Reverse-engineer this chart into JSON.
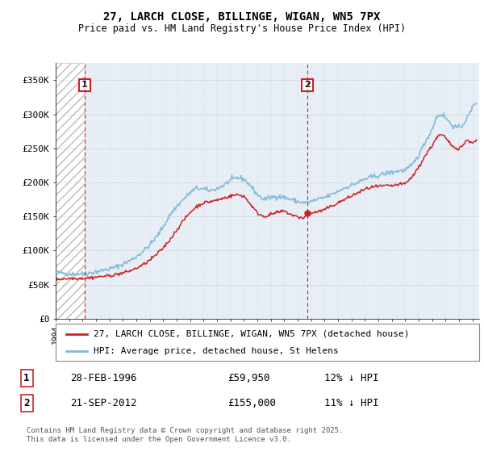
{
  "title1": "27, LARCH CLOSE, BILLINGE, WIGAN, WN5 7PX",
  "title2": "Price paid vs. HM Land Registry's House Price Index (HPI)",
  "ylim": [
    0,
    375000
  ],
  "xlim_start": 1994.0,
  "xlim_end": 2025.5,
  "sale1_date": 1996.16,
  "sale1_price": 59950,
  "sale1_label": "1",
  "sale2_date": 2012.72,
  "sale2_price": 155000,
  "sale2_label": "2",
  "hpi_color": "#7ab8d9",
  "price_color": "#cc2222",
  "bg_color": "#e8eef5",
  "legend_line1": "27, LARCH CLOSE, BILLINGE, WIGAN, WN5 7PX (detached house)",
  "legend_line2": "HPI: Average price, detached house, St Helens",
  "info1_num": "1",
  "info1_date": "28-FEB-1996",
  "info1_price": "£59,950",
  "info1_hpi": "12% ↓ HPI",
  "info2_num": "2",
  "info2_date": "21-SEP-2012",
  "info2_price": "£155,000",
  "info2_hpi": "11% ↓ HPI",
  "footnote": "Contains HM Land Registry data © Crown copyright and database right 2025.\nThis data is licensed under the Open Government Licence v3.0.",
  "hpi_anchors": [
    [
      1994.0,
      68000
    ],
    [
      1994.5,
      67000
    ],
    [
      1995.0,
      66000
    ],
    [
      1995.5,
      65500
    ],
    [
      1996.0,
      66000
    ],
    [
      1996.5,
      67000
    ],
    [
      1997.0,
      69000
    ],
    [
      1997.5,
      71000
    ],
    [
      1998.0,
      73000
    ],
    [
      1998.5,
      76000
    ],
    [
      1999.0,
      80000
    ],
    [
      1999.5,
      85000
    ],
    [
      2000.0,
      91000
    ],
    [
      2000.5,
      99000
    ],
    [
      2001.0,
      108000
    ],
    [
      2001.5,
      120000
    ],
    [
      2002.0,
      135000
    ],
    [
      2002.5,
      152000
    ],
    [
      2003.0,
      165000
    ],
    [
      2003.5,
      175000
    ],
    [
      2004.0,
      185000
    ],
    [
      2004.5,
      192000
    ],
    [
      2005.0,
      190000
    ],
    [
      2005.5,
      188000
    ],
    [
      2006.0,
      191000
    ],
    [
      2006.5,
      196000
    ],
    [
      2007.0,
      203000
    ],
    [
      2007.5,
      207000
    ],
    [
      2008.0,
      205000
    ],
    [
      2008.5,
      195000
    ],
    [
      2009.0,
      182000
    ],
    [
      2009.5,
      175000
    ],
    [
      2010.0,
      178000
    ],
    [
      2010.5,
      180000
    ],
    [
      2011.0,
      178000
    ],
    [
      2011.5,
      175000
    ],
    [
      2012.0,
      172000
    ],
    [
      2012.5,
      170000
    ],
    [
      2013.0,
      172000
    ],
    [
      2013.5,
      175000
    ],
    [
      2014.0,
      178000
    ],
    [
      2014.5,
      182000
    ],
    [
      2015.0,
      187000
    ],
    [
      2015.5,
      192000
    ],
    [
      2016.0,
      196000
    ],
    [
      2016.5,
      200000
    ],
    [
      2017.0,
      205000
    ],
    [
      2017.5,
      208000
    ],
    [
      2018.0,
      210000
    ],
    [
      2018.5,
      213000
    ],
    [
      2019.0,
      215000
    ],
    [
      2019.5,
      217000
    ],
    [
      2020.0,
      218000
    ],
    [
      2020.5,
      225000
    ],
    [
      2021.0,
      240000
    ],
    [
      2021.5,
      260000
    ],
    [
      2022.0,
      278000
    ],
    [
      2022.3,
      295000
    ],
    [
      2022.6,
      300000
    ],
    [
      2022.9,
      298000
    ],
    [
      2023.0,
      295000
    ],
    [
      2023.3,
      288000
    ],
    [
      2023.6,
      282000
    ],
    [
      2024.0,
      280000
    ],
    [
      2024.3,
      285000
    ],
    [
      2024.6,
      295000
    ],
    [
      2024.9,
      305000
    ],
    [
      2025.1,
      315000
    ],
    [
      2025.3,
      318000
    ]
  ],
  "price_anchors": [
    [
      1994.0,
      58000
    ],
    [
      1994.5,
      58500
    ],
    [
      1995.0,
      59000
    ],
    [
      1995.5,
      59200
    ],
    [
      1996.0,
      59500
    ],
    [
      1996.5,
      60000
    ],
    [
      1997.0,
      61000
    ],
    [
      1997.5,
      62000
    ],
    [
      1998.0,
      63000
    ],
    [
      1998.5,
      65000
    ],
    [
      1999.0,
      67000
    ],
    [
      1999.5,
      70000
    ],
    [
      2000.0,
      74000
    ],
    [
      2000.5,
      79000
    ],
    [
      2001.0,
      86000
    ],
    [
      2001.5,
      94000
    ],
    [
      2002.0,
      104000
    ],
    [
      2002.5,
      116000
    ],
    [
      2003.0,
      130000
    ],
    [
      2003.5,
      144000
    ],
    [
      2004.0,
      156000
    ],
    [
      2004.5,
      165000
    ],
    [
      2005.0,
      170000
    ],
    [
      2005.5,
      172000
    ],
    [
      2006.0,
      174000
    ],
    [
      2006.5,
      177000
    ],
    [
      2007.0,
      180000
    ],
    [
      2007.5,
      182000
    ],
    [
      2008.0,
      180000
    ],
    [
      2008.5,
      168000
    ],
    [
      2009.0,
      155000
    ],
    [
      2009.5,
      150000
    ],
    [
      2010.0,
      153000
    ],
    [
      2010.5,
      156000
    ],
    [
      2011.0,
      158000
    ],
    [
      2011.5,
      153000
    ],
    [
      2012.0,
      149000
    ],
    [
      2012.5,
      148000
    ],
    [
      2012.72,
      155000
    ],
    [
      2013.0,
      155000
    ],
    [
      2013.5,
      157000
    ],
    [
      2014.0,
      160000
    ],
    [
      2014.5,
      165000
    ],
    [
      2015.0,
      170000
    ],
    [
      2015.5,
      175000
    ],
    [
      2016.0,
      180000
    ],
    [
      2016.5,
      185000
    ],
    [
      2017.0,
      190000
    ],
    [
      2017.5,
      193000
    ],
    [
      2018.0,
      194000
    ],
    [
      2018.5,
      195000
    ],
    [
      2019.0,
      195000
    ],
    [
      2019.5,
      197000
    ],
    [
      2020.0,
      198000
    ],
    [
      2020.5,
      208000
    ],
    [
      2021.0,
      222000
    ],
    [
      2021.5,
      240000
    ],
    [
      2022.0,
      254000
    ],
    [
      2022.3,
      265000
    ],
    [
      2022.6,
      270000
    ],
    [
      2022.9,
      268000
    ],
    [
      2023.0,
      265000
    ],
    [
      2023.3,
      258000
    ],
    [
      2023.6,
      252000
    ],
    [
      2024.0,
      250000
    ],
    [
      2024.3,
      255000
    ],
    [
      2024.6,
      262000
    ],
    [
      2024.9,
      260000
    ],
    [
      2025.1,
      258000
    ],
    [
      2025.3,
      262000
    ]
  ]
}
